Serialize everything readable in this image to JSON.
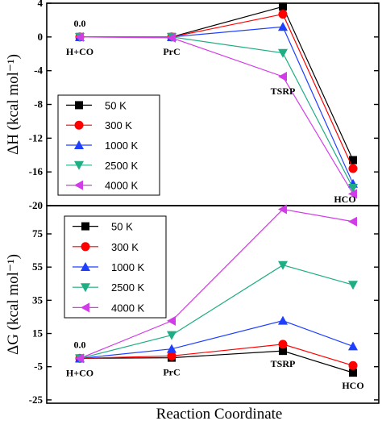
{
  "chart_data": [
    {
      "type": "line",
      "ylabel": "ΔH (kcal mol⁻¹)",
      "ylim": [
        -20,
        4
      ],
      "yticks": [
        4,
        0,
        -4,
        -8,
        -12,
        -16,
        -20
      ],
      "categories": [
        "H+CO",
        "PrC",
        "TSRP",
        "HCO"
      ],
      "series": [
        {
          "name": "50 K",
          "color": "#000000",
          "marker": "square",
          "values": [
            0,
            0,
            3.6,
            -14.6
          ]
        },
        {
          "name": "300 K",
          "color": "#ff0000",
          "marker": "circle",
          "values": [
            0,
            0,
            2.7,
            -15.6
          ]
        },
        {
          "name": "1000 K",
          "color": "#1f3fff",
          "marker": "triangle-up",
          "values": [
            0,
            0,
            1.2,
            -17.4
          ]
        },
        {
          "name": "2500 K",
          "color": "#1fae84",
          "marker": "triangle-down",
          "values": [
            0,
            0,
            -1.9,
            -17.9
          ]
        },
        {
          "name": "4000 K",
          "color": "#d23ce8",
          "marker": "triangle-left",
          "values": [
            0,
            -0.1,
            -4.7,
            -18.6
          ]
        }
      ],
      "annotations": [
        {
          "text": "0.0",
          "category": "H+CO"
        },
        {
          "text": "H+CO",
          "category": "H+CO"
        },
        {
          "text": "PrC",
          "category": "PrC"
        },
        {
          "text": "TSRP",
          "category": "TSRP"
        },
        {
          "text": "HCO",
          "category": "HCO"
        }
      ],
      "legend": "center-left"
    },
    {
      "type": "line",
      "ylabel": "ΔG (kcal mol⁻¹)",
      "xlabel": "Reaction Coordinate",
      "ylim": [
        -27,
        92
      ],
      "yticks": [
        75,
        55,
        35,
        15,
        -5,
        -25
      ],
      "categories": [
        "H+CO",
        "PrC",
        "TSRP",
        "HCO"
      ],
      "series": [
        {
          "name": "50 K",
          "color": "#000000",
          "marker": "square",
          "values": [
            0,
            0.4,
            4.5,
            -8.6
          ]
        },
        {
          "name": "300 K",
          "color": "#ff0000",
          "marker": "circle",
          "values": [
            0,
            1.5,
            8.5,
            -4.3
          ]
        },
        {
          "name": "1000 K",
          "color": "#1f3fff",
          "marker": "triangle-up",
          "values": [
            0,
            5.7,
            22.7,
            7.3
          ]
        },
        {
          "name": "2500 K",
          "color": "#1fae84",
          "marker": "triangle-down",
          "values": [
            0,
            14.0,
            56.2,
            44.3
          ]
        },
        {
          "name": "4000 K",
          "color": "#d23ce8",
          "marker": "triangle-left",
          "values": [
            0,
            22.6,
            89.8,
            82.4
          ]
        }
      ],
      "annotations": [
        {
          "text": "0.0",
          "category": "H+CO"
        },
        {
          "text": "H+CO",
          "category": "H+CO"
        },
        {
          "text": "PrC",
          "category": "PrC"
        },
        {
          "text": "TSRP",
          "category": "TSRP"
        },
        {
          "text": "HCO",
          "category": "HCO"
        }
      ],
      "legend": "top-left"
    }
  ]
}
